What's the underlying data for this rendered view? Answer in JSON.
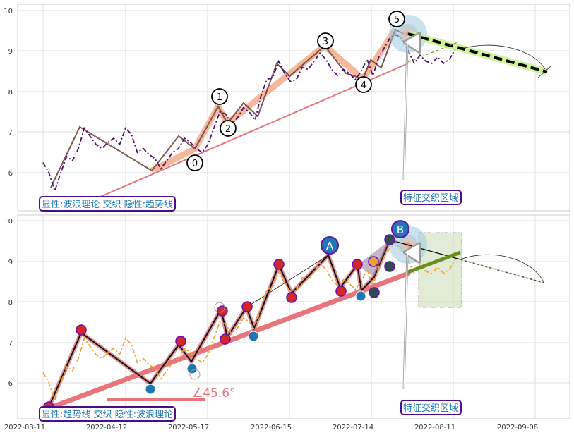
{
  "chart_data": [
    {
      "type": "line",
      "panel": "top",
      "ylim": [
        5.1,
        10.15
      ],
      "yticks": [
        "6",
        "7",
        "8",
        "9",
        "10"
      ],
      "grid": true,
      "series": [
        {
          "values": [
            6.25,
            6.0,
            5.55,
            6.0,
            6.4,
            6.3,
            6.6,
            7.1,
            6.9,
            6.7,
            6.6,
            6.75,
            6.85,
            6.7,
            7.1,
            6.95,
            6.5,
            6.6,
            6.45,
            6.35,
            6.1,
            6.3,
            6.5,
            6.6,
            6.85,
            6.75,
            6.6,
            6.5,
            6.7,
            7.1,
            7.5,
            7.45,
            7.2,
            7.35,
            7.6,
            7.5,
            7.3,
            7.9,
            8.3,
            8.35,
            8.75,
            8.45,
            8.25,
            8.3,
            8.6,
            8.55,
            8.75,
            8.95,
            8.8,
            8.55,
            8.4,
            8.55,
            8.45,
            8.3,
            8.5,
            8.8,
            8.4,
            8.85,
            9.1,
            9.35,
            9.4,
            9.3,
            9.0,
            8.7,
            8.9,
            8.75,
            8.7,
            8.85,
            8.7,
            8.8,
            9.05
          ]
        }
      ],
      "waves": {
        "points": [
          "0",
          "1",
          "2",
          "3",
          "4",
          "5"
        ]
      },
      "annotation": "特征交织区域",
      "legend_box": "显性:波浪理论 交织 隐性:趋势线"
    },
    {
      "type": "line",
      "panel": "bottom",
      "ylim": [
        5.1,
        10.15
      ],
      "yticks": [
        "6",
        "7",
        "8",
        "9",
        "10"
      ],
      "xticks": [
        "2022-03-11",
        "2022-04-12",
        "2022-05-17",
        "2022-06-15",
        "2022-07-14",
        "2022-08-11",
        "2022-09-08"
      ],
      "grid": true,
      "series": [
        {
          "values": [
            6.25,
            6.0,
            5.55,
            6.0,
            6.4,
            6.3,
            6.6,
            7.1,
            6.9,
            6.7,
            6.6,
            6.75,
            6.85,
            6.7,
            7.1,
            6.95,
            6.5,
            6.6,
            6.45,
            6.35,
            6.1,
            6.3,
            6.5,
            6.6,
            6.85,
            6.75,
            6.6,
            6.5,
            6.7,
            7.1,
            7.5,
            7.45,
            7.2,
            7.35,
            7.6,
            7.5,
            7.3,
            7.9,
            8.3,
            8.35,
            8.75,
            8.45,
            8.25,
            8.3,
            8.6,
            8.55,
            8.75,
            8.95,
            8.8,
            8.55,
            8.4,
            8.55,
            8.45,
            8.3,
            8.5,
            8.8,
            8.4,
            8.85,
            9.1,
            9.35,
            9.4,
            9.3,
            9.0,
            8.7,
            8.9,
            8.75,
            8.7,
            8.85,
            8.7,
            8.8,
            9.05
          ]
        }
      ],
      "waves": {
        "points": [
          "A",
          "B"
        ]
      },
      "angle_label": "∠45.6°",
      "annotation": "特征交织区域",
      "legend_box": "显性:趋势线 交织 隐性:波浪理论"
    }
  ]
}
